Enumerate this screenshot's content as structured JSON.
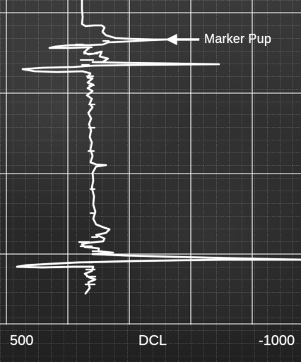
{
  "screen": {
    "annotation_label": "Marker Pup",
    "x_axis": {
      "left_label": "500",
      "center_label": "DCL",
      "right_label": "-1000"
    }
  },
  "colors": {
    "background": "#2f2f2f",
    "grid": "#f0f0f0",
    "trace": "#ffffff",
    "text": "#f4f4f4"
  },
  "icons": {
    "annotation_arrow": "arrow-left-icon"
  }
}
